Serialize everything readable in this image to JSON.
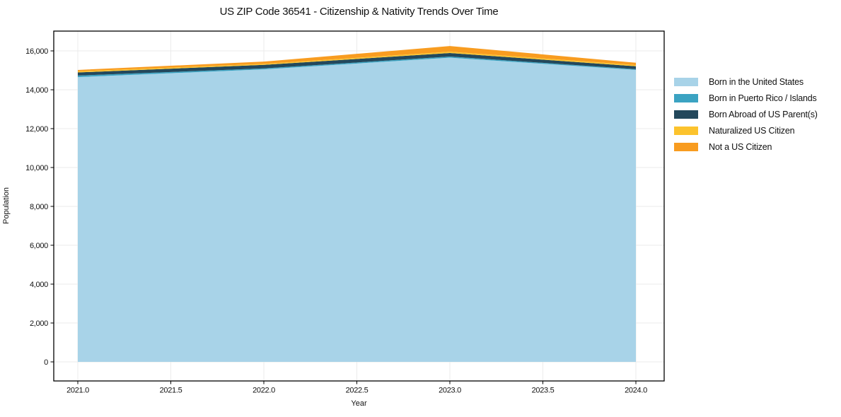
{
  "figure": {
    "background": "#ffffff",
    "frame_color": "#000000",
    "grid_color": "#ebebeb",
    "tick_color": "#000000",
    "text_color": "#111111"
  },
  "chart_data": {
    "type": "area",
    "stacked": true,
    "title": "US ZIP Code 36541 - Citizenship & Nativity Trends Over Time",
    "xlabel": "Year",
    "ylabel": "Population",
    "x": [
      2021,
      2022,
      2023,
      2024
    ],
    "series": [
      {
        "name": "Born in the United States",
        "color": "#a8d3e8",
        "values": [
          14650,
          15050,
          15650,
          15020
        ]
      },
      {
        "name": "Born in Puerto Rico / Islands",
        "color": "#3ba3c2",
        "values": [
          80,
          50,
          60,
          40
        ]
      },
      {
        "name": "Born Abroad of US Parent(s)",
        "color": "#23485c",
        "values": [
          160,
          180,
          180,
          150
        ]
      },
      {
        "name": "Naturalized US Citizen",
        "color": "#fcc32d",
        "values": [
          60,
          50,
          70,
          60
        ]
      },
      {
        "name": "Not a US Citizen",
        "color": "#f89c20",
        "values": [
          70,
          120,
          290,
          120
        ]
      }
    ],
    "stack_totals": [
      15020,
      15450,
      16250,
      15390
    ],
    "x_ticks": [
      2021.0,
      2021.5,
      2022.0,
      2022.5,
      2023.0,
      2023.5,
      2024.0
    ],
    "x_tick_labels": [
      "2021.0",
      "2021.5",
      "2022.0",
      "2022.5",
      "2023.0",
      "2023.5",
      "2024.0"
    ],
    "y_ticks": [
      0,
      2000,
      4000,
      6000,
      8000,
      10000,
      12000,
      14000,
      16000
    ],
    "y_tick_labels": [
      "0",
      "2,000",
      "4,000",
      "6,000",
      "8,000",
      "10,000",
      "12,000",
      "14,000",
      "16,000"
    ],
    "xlim": [
      2020.8707,
      2024.1521
    ],
    "ylim": [
      -982,
      17018
    ],
    "grid": true,
    "legend_position": "right-outside"
  }
}
